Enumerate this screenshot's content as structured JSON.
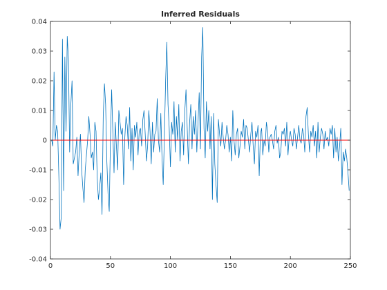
{
  "chart_data": {
    "type": "line",
    "title": "Inferred Residuals",
    "xlabel": "",
    "ylabel": "",
    "xlim": [
      0,
      250
    ],
    "ylim": [
      -0.04,
      0.04
    ],
    "xticks": [
      0,
      50,
      100,
      150,
      200,
      250
    ],
    "yticks": [
      -0.04,
      -0.03,
      -0.02,
      -0.01,
      0,
      0.01,
      0.02,
      0.03,
      0.04
    ],
    "xtick_labels": [
      "0",
      "50",
      "100",
      "150",
      "200",
      "250"
    ],
    "ytick_labels": [
      "-0.04",
      "-0.03",
      "-0.02",
      "-0.01",
      "0",
      "0.01",
      "0.02",
      "0.03",
      "0.04"
    ],
    "grid": false,
    "colors": {
      "series": "#0072BD",
      "zero_line": "#FF0000",
      "axes": "#262626"
    },
    "series": [
      {
        "values": [
          0.0,
          -0.002,
          0.023,
          0.0,
          0.005,
          0.003,
          -0.012,
          -0.03,
          -0.026,
          0.034,
          -0.017,
          0.028,
          0.003,
          0.035,
          0.027,
          -0.004,
          0.012,
          0.02,
          -0.008,
          -0.006,
          -0.004,
          0.001,
          -0.012,
          -0.004,
          0.002,
          -0.01,
          -0.016,
          -0.021,
          -0.01,
          -0.005,
          0.0,
          0.008,
          0.002,
          -0.006,
          -0.004,
          -0.01,
          0.006,
          0.003,
          -0.013,
          -0.02,
          -0.016,
          -0.011,
          -0.025,
          0.008,
          0.019,
          0.012,
          -0.007,
          -0.018,
          -0.024,
          0.0,
          0.017,
          0.003,
          -0.011,
          0.006,
          -0.002,
          -0.01,
          0.01,
          0.006,
          0.002,
          0.004,
          -0.015,
          0.001,
          0.008,
          0.005,
          -0.003,
          0.011,
          -0.007,
          0.004,
          -0.01,
          0.005,
          0.001,
          0.006,
          -0.005,
          0.003,
          0.004,
          -0.002,
          0.007,
          0.01,
          0.002,
          -0.007,
          -0.002,
          0.01,
          0.003,
          -0.008,
          0.006,
          -0.004,
          0.002,
          0.003,
          0.014,
          0.0,
          -0.004,
          0.009,
          -0.006,
          -0.015,
          0.002,
          0.02,
          0.033,
          0.012,
          0.004,
          -0.009,
          0.006,
          0.002,
          0.013,
          -0.004,
          0.008,
          0.0,
          0.012,
          -0.007,
          0.003,
          0.006,
          -0.005,
          0.01,
          0.017,
          0.004,
          -0.008,
          0.006,
          0.012,
          -0.003,
          0.008,
          0.002,
          0.01,
          -0.004,
          0.006,
          0.016,
          -0.003,
          0.028,
          0.038,
          0.004,
          -0.006,
          0.013,
          0.003,
          0.01,
          -0.003,
          0.008,
          -0.02,
          0.009,
          -0.008,
          -0.015,
          -0.021,
          0.007,
          0.002,
          -0.002,
          0.006,
          0.001,
          -0.003,
          0.0,
          0.005,
          0.002,
          -0.004,
          0.001,
          -0.007,
          0.01,
          0.0,
          -0.005,
          0.002,
          0.004,
          -0.006,
          -0.002,
          0.003,
          0.001,
          0.007,
          -0.003,
          0.005,
          0.004,
          0.0,
          -0.004,
          0.002,
          0.006,
          -0.002,
          -0.008,
          0.003,
          0.001,
          0.005,
          -0.012,
          0.002,
          0.004,
          -0.005,
          0.0,
          -0.002,
          0.006,
          0.003,
          -0.004,
          0.001,
          0.002,
          0.0,
          -0.003,
          0.003,
          0.005,
          -0.001,
          0.001,
          -0.006,
          -0.004,
          0.003,
          0.002,
          0.004,
          -0.002,
          0.006,
          -0.005,
          0.001,
          0.003,
          0.0,
          -0.002,
          0.004,
          0.002,
          -0.003,
          0.001,
          0.005,
          0.0,
          -0.001,
          0.004,
          0.002,
          -0.004,
          0.008,
          0.011,
          0.002,
          -0.004,
          0.003,
          0.001,
          0.005,
          -0.002,
          0.003,
          -0.006,
          0.006,
          -0.004,
          0.001,
          0.004,
          0.002,
          -0.003,
          0.003,
          0.0,
          0.001,
          -0.002,
          0.004,
          0.002,
          0.005,
          -0.006,
          0.004,
          -0.004,
          0.001,
          -0.007,
          -0.002,
          0.004,
          -0.015,
          -0.004,
          -0.007,
          -0.003,
          -0.006,
          -0.011,
          -0.017
        ]
      }
    ],
    "reference_lines": [
      {
        "y": 0
      }
    ]
  }
}
